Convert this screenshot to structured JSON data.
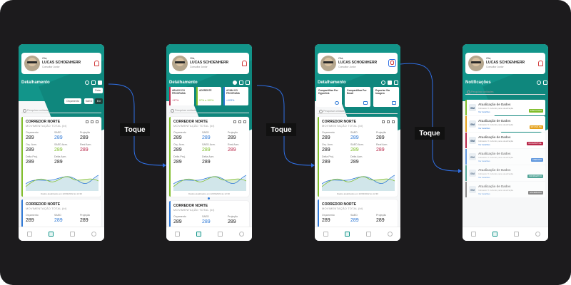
{
  "user": {
    "greeting": "Olá,",
    "name": "LUCAS SCHOENHERR",
    "role": "Consultor Junior"
  },
  "page_title": "Detalhamento",
  "notifications_title": "Notificações",
  "search_placeholder": "Pesquisar unidade",
  "notif_search_placeholder": "Pesquisar unidades",
  "touch_label": "Toque",
  "screen1": {
    "data_label": "Data",
    "filters": [
      "Orçamento",
      "SAED",
      "Exr"
    ]
  },
  "screen2": {
    "kpis": [
      {
        "title": "ABAIXO DO PROGRAMA",
        "value": "+97%",
        "color": "#b8284a"
      },
      {
        "title": "ADERENTE",
        "value": "97% a 103%",
        "color": "#7fbd2a"
      },
      {
        "title": "ACIMA DO PROGRAMA",
        "value": "<103%",
        "color": "#2f79d6"
      }
    ]
  },
  "screen3": {
    "actions": [
      {
        "title": "Compartilhar Por Hyperlink"
      },
      {
        "title": "Compartilhar Por Email"
      },
      {
        "title": "Exportar Via Imagem"
      }
    ]
  },
  "card": {
    "title": "CORREDOR NORTE",
    "subtitle": "MOVIMENTAÇÃO TOTAL (kt)",
    "metrics": [
      {
        "label": "Orçamento",
        "value": "289",
        "tone": ""
      },
      {
        "label": "SAED",
        "value": "289",
        "tone": "blue"
      },
      {
        "label": "Projeção",
        "value": "289",
        "tone": ""
      },
      {
        "label": "Orç. Acm.",
        "value": "289",
        "tone": ""
      },
      {
        "label": "SAED Acm.",
        "value": "289",
        "tone": "green"
      },
      {
        "label": "Real Acm.",
        "value": "289",
        "tone": "red"
      },
      {
        "label": "Delta Proj.",
        "value": "289",
        "tone": ""
      },
      {
        "label": "Delta Acm.",
        "value": "289",
        "tone": ""
      }
    ],
    "updated": "Dados atualizados em 22/03/2022 às 12:30"
  },
  "notifications": [
    {
      "abbr": "SM",
      "title": "Atualização de Dados",
      "desc": "Indicador X incluído para atualização",
      "link": "Ver detalhes",
      "tag": "EXECUTADO",
      "tag_color": "#7fbd2a",
      "bar": "#7fbd2a"
    },
    {
      "abbr": "SM",
      "title": "Atualização de Dados",
      "desc": "Indicador X incluído para atualização",
      "link": "Ver detalhes",
      "tag": "EM ANÁLISE",
      "tag_color": "#e4a11b",
      "bar": "#e4a11b"
    },
    {
      "abbr": "SM",
      "title": "Atualização de Dados",
      "desc": "Indicador X incluído para atualização",
      "link": "Ver detalhes",
      "tag": "INCOMPATÍVEL",
      "tag_color": "#b8284a",
      "bar": "#b8284a"
    },
    {
      "abbr": "SM",
      "title": "Atualização de Dados",
      "desc": "Indicador X incluído para atualização",
      "link": "Ver detalhes",
      "tag": "LIBERADO",
      "tag_color": "#2f79d6",
      "bar": "#2f79d6"
    },
    {
      "abbr": "SM",
      "title": "Atualização de Dados",
      "desc": "Indicador X incluído para atualização",
      "link": "Ver detalhes",
      "tag": "INFORMATIVO",
      "tag_color": "#1f8c7a",
      "bar": "#1f8c7a"
    },
    {
      "abbr": "SM",
      "title": "Atualização de Dados",
      "desc": "Indicador X incluído para atualização",
      "link": "Ver detalhes",
      "tag": "ENCERRADO",
      "tag_color": "#666666",
      "bar": "#666666"
    }
  ],
  "colors": {
    "brand": "#12958a",
    "background": "#1c1b1d",
    "arrow": "#2f6fe4"
  },
  "icons": [
    "bell-icon",
    "info-icon",
    "table-icon",
    "filter-icon",
    "share-icon",
    "expand-icon",
    "search-icon",
    "grid-icon",
    "chart-icon",
    "bookmark-icon",
    "gear-icon"
  ]
}
